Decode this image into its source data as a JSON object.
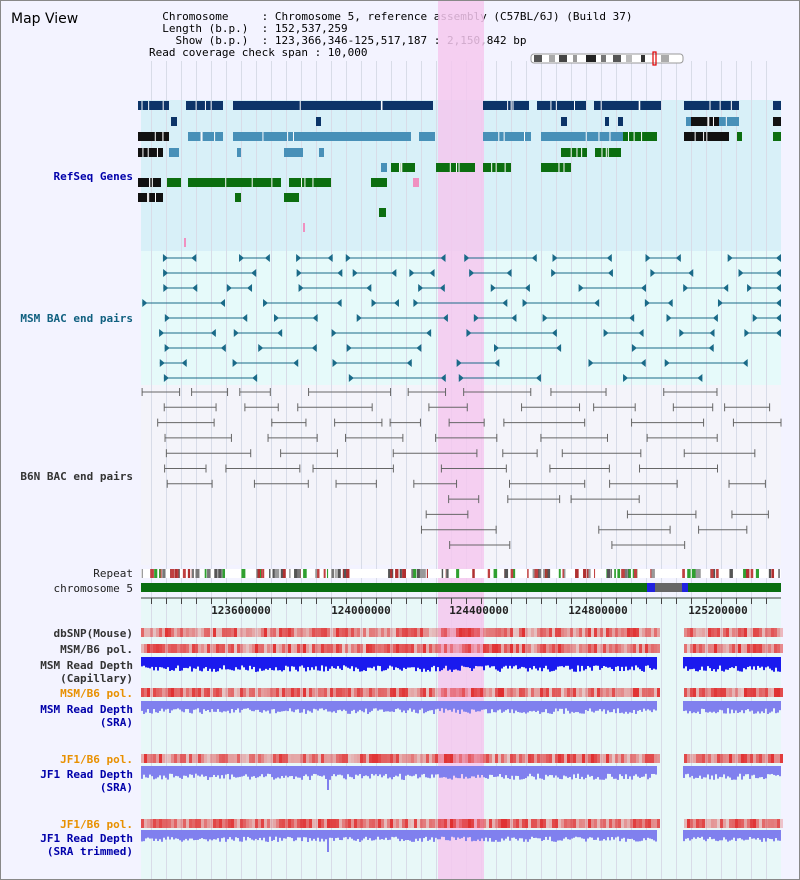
{
  "page": {
    "title": "Map View",
    "info_lines": [
      "  Chromosome     : Chromosome 5, reference assembly (C57BL/6J) (Build 37)",
      "  Length (b.p.)  : 152,537,259",
      "    Show (b.p.)  : 123,366,346-125,517,187 : 2,150,842 bp",
      "Read coverage check span : 10,000"
    ]
  },
  "tracks": [
    {
      "id": "refseq",
      "label": "RefSeq Genes",
      "color": "#0000aa",
      "bold": true
    },
    {
      "id": "msm_bac",
      "label": "MSM BAC end pairs",
      "color": "#106080",
      "bold": true
    },
    {
      "id": "b6n_bac",
      "label": "B6N BAC end pairs",
      "color": "#333333",
      "bold": true
    },
    {
      "id": "repeat",
      "label": "Repeat",
      "color": "#222222",
      "bold": false
    },
    {
      "id": "chromosome",
      "label": "chromosome 5",
      "color": "#222222",
      "bold": false
    },
    {
      "id": "dbsnp",
      "label": "dbSNP(Mouse)",
      "color": "#333333",
      "bold": true
    },
    {
      "id": "msm_b6_pol_1",
      "label": "MSM/B6 pol.",
      "color": "#333333",
      "bold": true
    },
    {
      "id": "msm_depth_cap",
      "label": "MSM Read Depth\n(Capillary)",
      "color": "#333333",
      "bold": true
    },
    {
      "id": "msm_b6_pol_2",
      "label": "MSM/B6 pol.",
      "color": "#e89000",
      "bold": true
    },
    {
      "id": "msm_depth_sra",
      "label": "MSM Read Depth\n(SRA)",
      "color": "#0000aa",
      "bold": true
    },
    {
      "id": "jf1_b6_pol_1",
      "label": "JF1/B6 pol.",
      "color": "#e89000",
      "bold": true
    },
    {
      "id": "jf1_depth_sra",
      "label": "JF1 Read Depth\n(SRA)",
      "color": "#0000aa",
      "bold": true
    },
    {
      "id": "jf1_b6_pol_2",
      "label": "JF1/B6 pol.",
      "color": "#e89000",
      "bold": true
    },
    {
      "id": "jf1_depth_trim",
      "label": "JF1 Read Depth\n(SRA trimmed)",
      "color": "#0000aa",
      "bold": true
    }
  ],
  "ruler": {
    "ticks": [
      "123600000",
      "124000000",
      "124400000",
      "124800000",
      "125200000"
    ]
  },
  "colors": {
    "refseq_bg": "#d8f0f8",
    "msm_bg": "#e6fafa",
    "b6n_bg": "#f4f4fa",
    "lower_bg": "#e8f8f8",
    "highlight": "#f5c8ee",
    "gene_navy": "#0c3468",
    "gene_steel": "#4890b8",
    "gene_green": "#0c6e10",
    "msm_feature": "#1a6a88",
    "b6n_feature": "#666666",
    "chromosome_bar": "#0a6e10",
    "depth_blue": "#1a1aee",
    "depth_violet": "#8080ee",
    "pol_red": "#e03030"
  }
}
